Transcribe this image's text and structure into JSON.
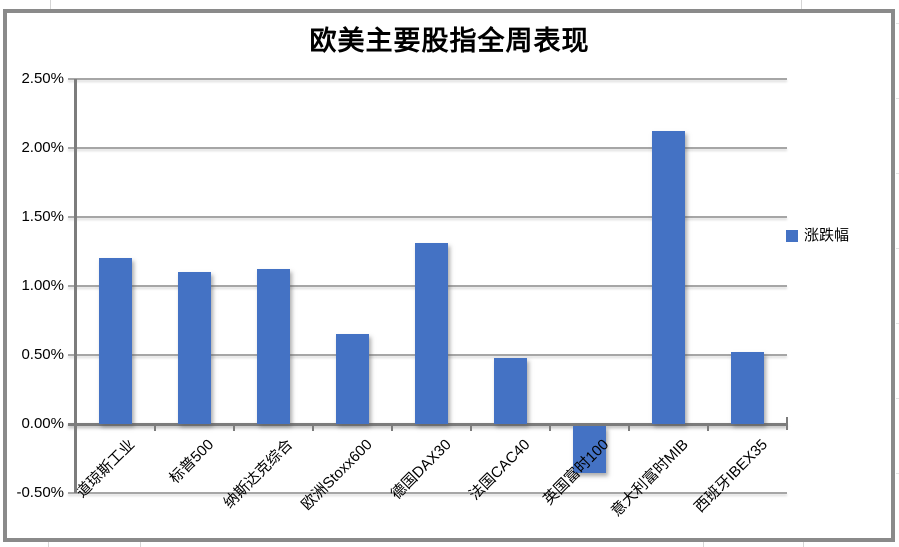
{
  "title": "欧美主要股指全周表现",
  "legend": {
    "label": "涨跌幅"
  },
  "colors": {
    "bar": "#4472C4",
    "gridline": "#a6a6a6",
    "axis": "#7c7c7c",
    "chart_border": "#8a8a8a",
    "background": "#ffffff",
    "text": "#000000"
  },
  "chart_data": {
    "type": "bar",
    "title": "欧美主要股指全周表现",
    "categories": [
      "道琼斯工业",
      "标普500",
      "纳斯达克综合",
      "欧洲Stoxx600",
      "德国DAX30",
      "法国CAC40",
      "英国富时100",
      "意大利富时MIB",
      "西班牙IBEX35"
    ],
    "series": [
      {
        "name": "涨跌幅",
        "values": [
          1.2,
          1.1,
          1.12,
          0.65,
          1.31,
          0.48,
          -0.34,
          2.12,
          0.52
        ]
      }
    ],
    "unit": "%",
    "ylim": [
      -0.5,
      2.5
    ],
    "ytick_labels": [
      "2.50%",
      "2.00%",
      "1.50%",
      "1.00%",
      "0.50%",
      "0.00%",
      "-0.50%"
    ],
    "ytick_values": [
      2.5,
      2.0,
      1.5,
      1.0,
      0.5,
      0.0,
      -0.5
    ],
    "xlabel": "",
    "ylabel": "",
    "grid": true,
    "legend_position": "right",
    "bar_color": "#4472C4"
  }
}
